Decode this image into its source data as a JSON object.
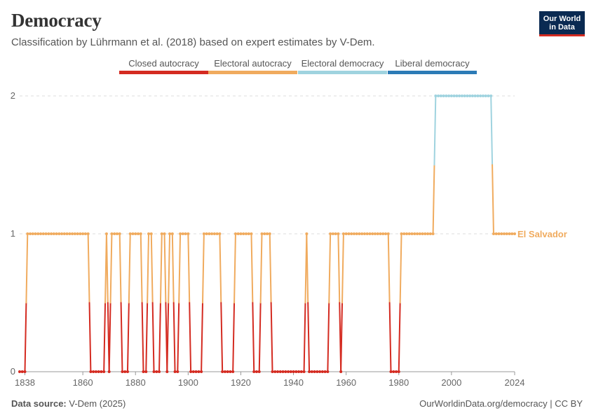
{
  "header": {
    "title": "Democracy",
    "subtitle": "Classification by Lührmann et al. (2018) based on expert estimates by V-Dem.",
    "logo_line1": "Our World",
    "logo_line2": "in Data"
  },
  "footer": {
    "source_label": "Data source:",
    "source_value": "V-Dem (2025)",
    "right": "OurWorldinData.org/democracy | CC BY"
  },
  "colors": {
    "closed": "#d42b21",
    "electoral_autocracy": "#f0ab5e",
    "electoral_democracy": "#9fd3df",
    "liberal_democracy": "#2c7bb6",
    "grid": "#dddddd",
    "axis_text": "#666666"
  },
  "chart_data": {
    "type": "line",
    "title": "Democracy",
    "series_name": "El Salvador",
    "xlabel": "",
    "ylabel": "",
    "xlim": [
      1836,
      2024
    ],
    "ylim": [
      0,
      2
    ],
    "x_ticks": [
      1838,
      1860,
      1880,
      1900,
      1920,
      1940,
      1960,
      1980,
      2000,
      2024
    ],
    "y_ticks": [
      0,
      1,
      2
    ],
    "legend": [
      {
        "label": "Closed autocracy",
        "color": "#d42b21"
      },
      {
        "label": "Electoral autocracy",
        "color": "#f0ab5e"
      },
      {
        "label": "Electoral democracy",
        "color": "#9fd3df"
      },
      {
        "label": "Liberal democracy",
        "color": "#2c7bb6"
      }
    ],
    "segments": [
      {
        "from": 1836,
        "to": 1838,
        "value": 0
      },
      {
        "from": 1839,
        "to": 1862,
        "value": 1
      },
      {
        "from": 1863,
        "to": 1868,
        "value": 0
      },
      {
        "from": 1869,
        "to": 1869,
        "value": 1
      },
      {
        "from": 1870,
        "to": 1870,
        "value": 0
      },
      {
        "from": 1871,
        "to": 1874,
        "value": 1
      },
      {
        "from": 1875,
        "to": 1877,
        "value": 0
      },
      {
        "from": 1878,
        "to": 1882,
        "value": 1
      },
      {
        "from": 1883,
        "to": 1884,
        "value": 0
      },
      {
        "from": 1885,
        "to": 1886,
        "value": 1
      },
      {
        "from": 1887,
        "to": 1889,
        "value": 0
      },
      {
        "from": 1890,
        "to": 1891,
        "value": 1
      },
      {
        "from": 1892,
        "to": 1892,
        "value": 0
      },
      {
        "from": 1893,
        "to": 1894,
        "value": 1
      },
      {
        "from": 1895,
        "to": 1896,
        "value": 0
      },
      {
        "from": 1897,
        "to": 1900,
        "value": 1
      },
      {
        "from": 1901,
        "to": 1905,
        "value": 0
      },
      {
        "from": 1906,
        "to": 1912,
        "value": 1
      },
      {
        "from": 1913,
        "to": 1917,
        "value": 0
      },
      {
        "from": 1918,
        "to": 1924,
        "value": 1
      },
      {
        "from": 1925,
        "to": 1927,
        "value": 0
      },
      {
        "from": 1928,
        "to": 1931,
        "value": 1
      },
      {
        "from": 1932,
        "to": 1944,
        "value": 0
      },
      {
        "from": 1945,
        "to": 1945,
        "value": 1
      },
      {
        "from": 1946,
        "to": 1953,
        "value": 0
      },
      {
        "from": 1954,
        "to": 1957,
        "value": 1
      },
      {
        "from": 1958,
        "to": 1958,
        "value": 0
      },
      {
        "from": 1959,
        "to": 1976,
        "value": 1
      },
      {
        "from": 1977,
        "to": 1980,
        "value": 0
      },
      {
        "from": 1981,
        "to": 1993,
        "value": 1
      },
      {
        "from": 1994,
        "to": 2015,
        "value": 2
      },
      {
        "from": 2016,
        "to": 2024,
        "value": 1
      }
    ]
  }
}
